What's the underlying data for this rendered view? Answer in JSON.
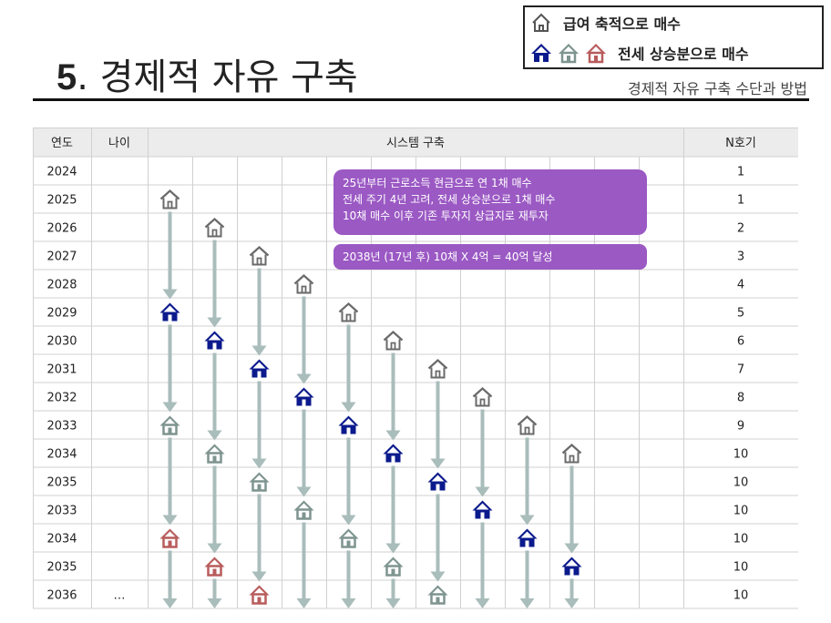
{
  "header": {
    "title_num": "5",
    "title_rest": ". 경제적 자유 구축",
    "subtitle": "경제적 자유 구축 수단과 방법"
  },
  "legend": {
    "row1_label": "급여 축적으로 매수",
    "row2_label": "전세 상승분으로 매수"
  },
  "table": {
    "col_year": "연도",
    "col_age": "나이",
    "col_system": "시스템 구축",
    "col_n": "N호기",
    "rows": [
      {
        "year": "2024",
        "age": "",
        "n": "1"
      },
      {
        "year": "2025",
        "age": "",
        "n": "1"
      },
      {
        "year": "2026",
        "age": "",
        "n": "2"
      },
      {
        "year": "2027",
        "age": "",
        "n": "3"
      },
      {
        "year": "2028",
        "age": "",
        "n": "4"
      },
      {
        "year": "2029",
        "age": "",
        "n": "5"
      },
      {
        "year": "2030",
        "age": "",
        "n": "6"
      },
      {
        "year": "2031",
        "age": "",
        "n": "7"
      },
      {
        "year": "2032",
        "age": "",
        "n": "8"
      },
      {
        "year": "2033",
        "age": "",
        "n": "9"
      },
      {
        "year": "2034",
        "age": "",
        "n": "10"
      },
      {
        "year": "2035",
        "age": "",
        "n": "10"
      },
      {
        "year": "2033",
        "age": "",
        "n": "10"
      },
      {
        "year": "2034",
        "age": "",
        "n": "10"
      },
      {
        "year": "2035",
        "age": "",
        "n": "10"
      },
      {
        "year": "2036",
        "age": "…",
        "n": "10"
      }
    ]
  },
  "notes": {
    "line1": "25년부터 근로소득 현금으로 연 1채 매수",
    "line2": "전세 주기 4년 고려, 전세 상승분으로 1채 매수",
    "line3": "10채 매수 이후 기존 투자지 상급지로 재투자",
    "line4": "2038년 (17년  후) 10채 X 4억 = 40억 달성"
  },
  "icons": {
    "white_house": "house-outline-icon",
    "blue_house": "house-navy-icon",
    "gray_house": "house-gray-icon",
    "pink_house": "house-pink-icon",
    "arrow": "arrow-down-icon"
  },
  "colors": {
    "white_roof": "#7a7a7a",
    "blue": "#0b1a8c",
    "gray": "#7e948f",
    "pink": "#b85c5c",
    "arrow": "#a9bdbb",
    "note": "#9b59c4",
    "header_bg": "#ececec"
  }
}
